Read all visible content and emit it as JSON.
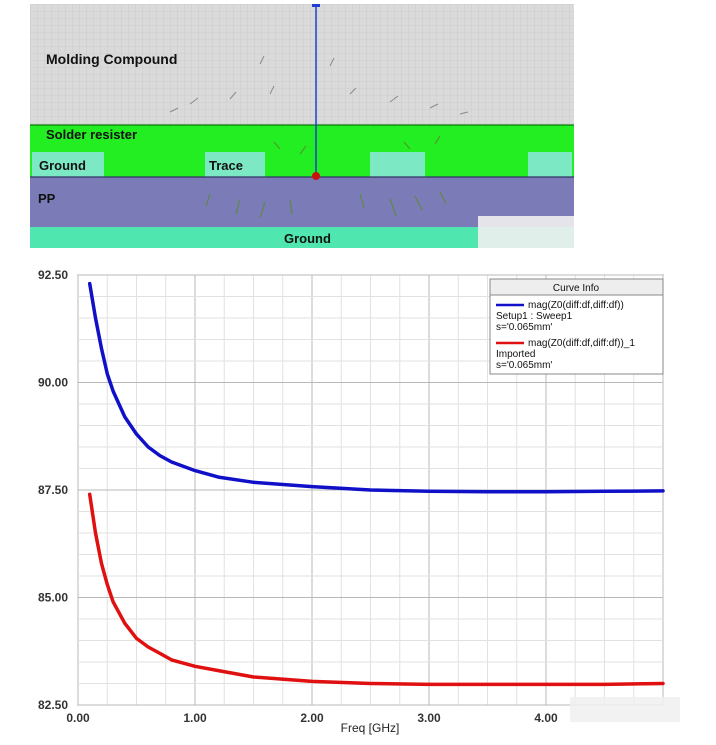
{
  "stackup": {
    "molding_label": "Molding Compound",
    "solder_label": "Solder resister",
    "ground_top_label": "Ground",
    "trace_label": "Trace",
    "pp_label": "PP",
    "ground_bottom_label": "Ground",
    "colors": {
      "molding": "#d9d9d9",
      "solder": "#22ee22",
      "pp": "#7b7bb8",
      "ground": "#7de8c4",
      "conductor": "#66e0b0",
      "field_line": "#1f3fd0",
      "probe": "#cc1010"
    }
  },
  "chart_data": {
    "type": "line",
    "title": "",
    "xlabel": "Freq [GHz]",
    "ylabel": "",
    "xlim": [
      0.0,
      5.0
    ],
    "ylim": [
      82.5,
      92.5
    ],
    "xticks": [
      "0.00",
      "1.00",
      "2.00",
      "3.00",
      "4.00"
    ],
    "yticks": [
      "82.50",
      "85.00",
      "87.50",
      "90.00",
      "92.50"
    ],
    "grid": true,
    "legend_title": "Curve Info",
    "legend_position": "top-right",
    "series": [
      {
        "name": "mag(Z0(diff:df,diff:df))",
        "detail1": "Setup1 : Sweep1",
        "detail2": "s='0.065mm'",
        "color": "#1010c8",
        "x": [
          0.1,
          0.15,
          0.2,
          0.25,
          0.3,
          0.4,
          0.5,
          0.6,
          0.7,
          0.8,
          1.0,
          1.2,
          1.5,
          2.0,
          2.5,
          3.0,
          3.5,
          4.0,
          4.5,
          5.0
        ],
        "values": [
          92.3,
          91.5,
          90.8,
          90.2,
          89.8,
          89.2,
          88.8,
          88.5,
          88.3,
          88.15,
          87.95,
          87.8,
          87.68,
          87.58,
          87.5,
          87.47,
          87.46,
          87.46,
          87.47,
          87.48
        ]
      },
      {
        "name": "mag(Z0(diff:df,diff:df))_1",
        "detail1": "Imported",
        "detail2": "s='0.065mm'",
        "color": "#e01010",
        "x": [
          0.1,
          0.15,
          0.2,
          0.25,
          0.3,
          0.4,
          0.5,
          0.6,
          0.7,
          0.8,
          1.0,
          1.2,
          1.5,
          2.0,
          2.5,
          3.0,
          3.5,
          4.0,
          4.5,
          5.0
        ],
        "values": [
          87.4,
          86.5,
          85.8,
          85.3,
          84.9,
          84.4,
          84.05,
          83.85,
          83.7,
          83.55,
          83.4,
          83.3,
          83.15,
          83.05,
          83.0,
          82.98,
          82.98,
          82.98,
          82.98,
          83.0
        ]
      }
    ]
  }
}
